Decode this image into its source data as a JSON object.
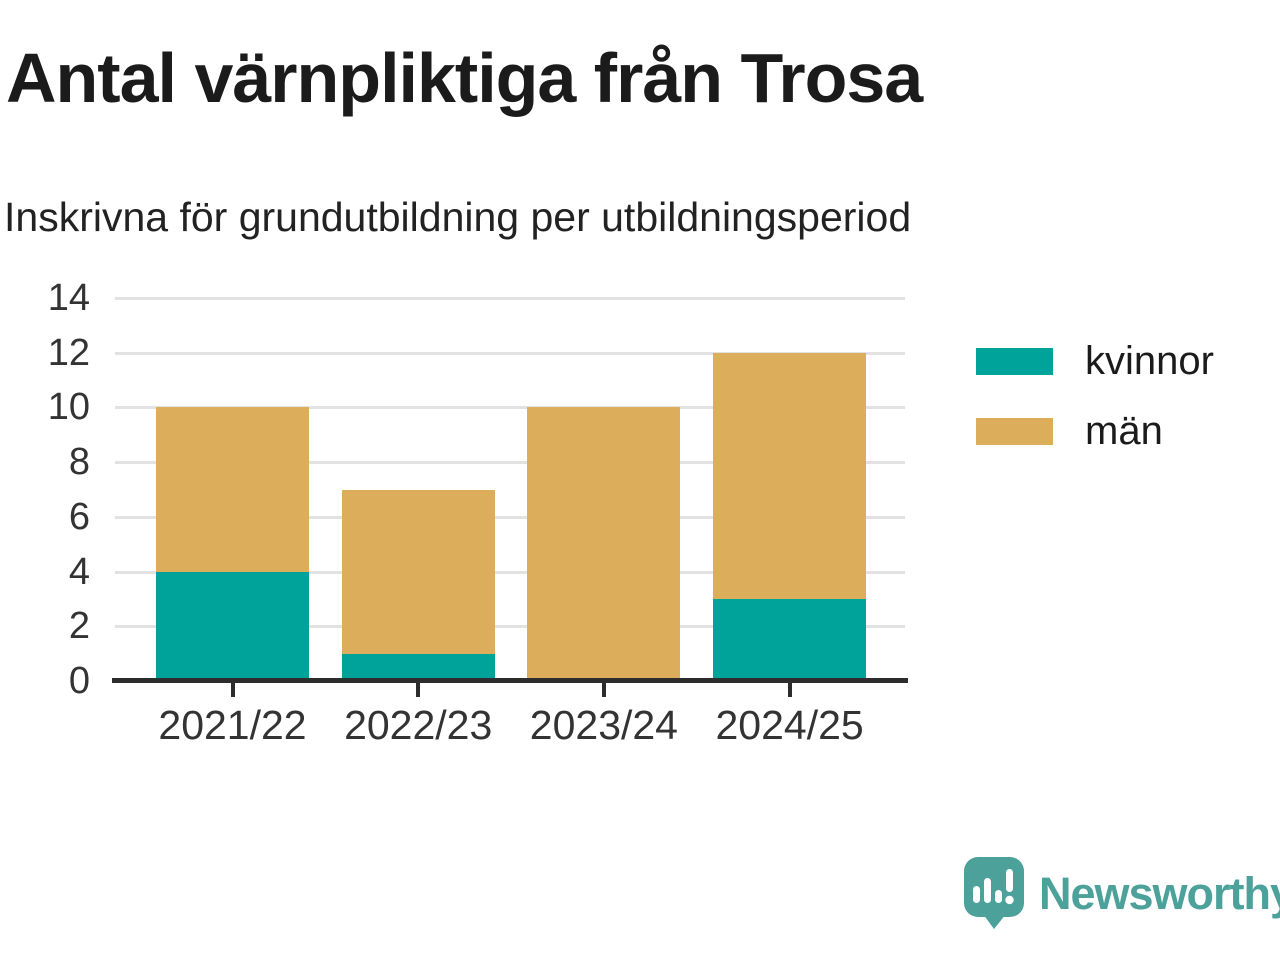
{
  "chart": {
    "title": "Antal värnpliktiga från Trosa",
    "subtitle": "Inskrivna för grundutbildning per utbildningsperiod"
  },
  "chart_data": {
    "type": "bar",
    "stacked": true,
    "categories": [
      "2021/22",
      "2022/23",
      "2023/24",
      "2024/25"
    ],
    "series": [
      {
        "name": "kvinnor",
        "color": "#00a399",
        "values": [
          4,
          1,
          0,
          3
        ]
      },
      {
        "name": "män",
        "color": "#dcae5c",
        "values": [
          6,
          6,
          10,
          9
        ]
      }
    ],
    "title": "Antal värnpliktiga från Trosa",
    "subtitle": "Inskrivna för grundutbildning per utbildningsperiod",
    "xlabel": "",
    "ylabel": "",
    "ylim": [
      0,
      14
    ],
    "yticks": [
      0,
      2,
      4,
      6,
      8,
      10,
      12,
      14
    ],
    "grid": true,
    "legend_position": "right"
  },
  "colors": {
    "kvinnor": "#00a399",
    "man": "#dcae5c",
    "grid": "#e2e2e2",
    "axis": "#2d2d2d",
    "text": "#333333",
    "brand": "#4ca29b"
  },
  "branding": {
    "logo_text": "Newsworthy",
    "logo_icon": "bar-chart-speech-bubble-icon"
  }
}
